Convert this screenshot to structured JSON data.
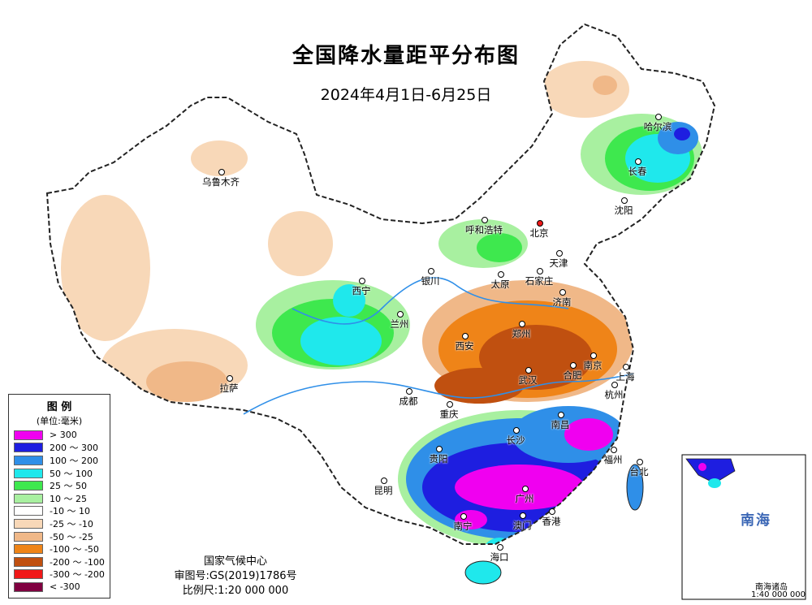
{
  "header": {
    "title": "全国降水量距平分布图",
    "subtitle": "2024年4月1日-6月25日"
  },
  "legend": {
    "title": "图 例",
    "unit": "(单位:毫米)",
    "items": [
      {
        "label": "> 300",
        "color": "#f000f0"
      },
      {
        "label": "200 ～ 300",
        "color": "#1e1ee0"
      },
      {
        "label": "100 ～ 200",
        "color": "#2f8fe8"
      },
      {
        "label": "50 ～ 100",
        "color": "#1fe8ec"
      },
      {
        "label": "25 ～ 50",
        "color": "#3ee84e"
      },
      {
        "label": "10 ～ 25",
        "color": "#a8f0a0"
      },
      {
        "label": "-10 ～ 10",
        "color": "#ffffff"
      },
      {
        "label": "-25 ～ -10",
        "color": "#f8d8b8"
      },
      {
        "label": "-50 ～ -25",
        "color": "#f0b888"
      },
      {
        "label": "-100 ～ -50",
        "color": "#ef8418"
      },
      {
        "label": "-200 ～ -100",
        "color": "#c05010"
      },
      {
        "label": "-300 ～ -200",
        "color": "#f01818"
      },
      {
        "label": "< -300",
        "color": "#800040"
      }
    ]
  },
  "credits": {
    "agency": "国家气候中心",
    "approval": "审图号:GS(2019)1786号",
    "scale": "比例尺:1:20 000 000"
  },
  "inset": {
    "sea_label": "南海",
    "caption": "南海诸岛",
    "scale": "1:40 000 000"
  },
  "cities": [
    {
      "name": "乌鲁木齐"
    },
    {
      "name": "哈尔滨"
    },
    {
      "name": "长春"
    },
    {
      "name": "沈阳"
    },
    {
      "name": "呼和浩特"
    },
    {
      "name": "北京"
    },
    {
      "name": "天津"
    },
    {
      "name": "石家庄"
    },
    {
      "name": "太原"
    },
    {
      "name": "银川"
    },
    {
      "name": "西宁"
    },
    {
      "name": "兰州"
    },
    {
      "name": "济南"
    },
    {
      "name": "郑州"
    },
    {
      "name": "西安"
    },
    {
      "name": "合肥"
    },
    {
      "name": "南京"
    },
    {
      "name": "上海"
    },
    {
      "name": "武汉"
    },
    {
      "name": "杭州"
    },
    {
      "name": "拉萨"
    },
    {
      "name": "成都"
    },
    {
      "name": "重庆"
    },
    {
      "name": "南昌"
    },
    {
      "name": "长沙"
    },
    {
      "name": "福州"
    },
    {
      "name": "台北"
    },
    {
      "name": "贵阳"
    },
    {
      "name": "昆明"
    },
    {
      "name": "广州"
    },
    {
      "name": "南宁"
    },
    {
      "name": "澳门"
    },
    {
      "name": "香港"
    },
    {
      "name": "海口"
    }
  ]
}
